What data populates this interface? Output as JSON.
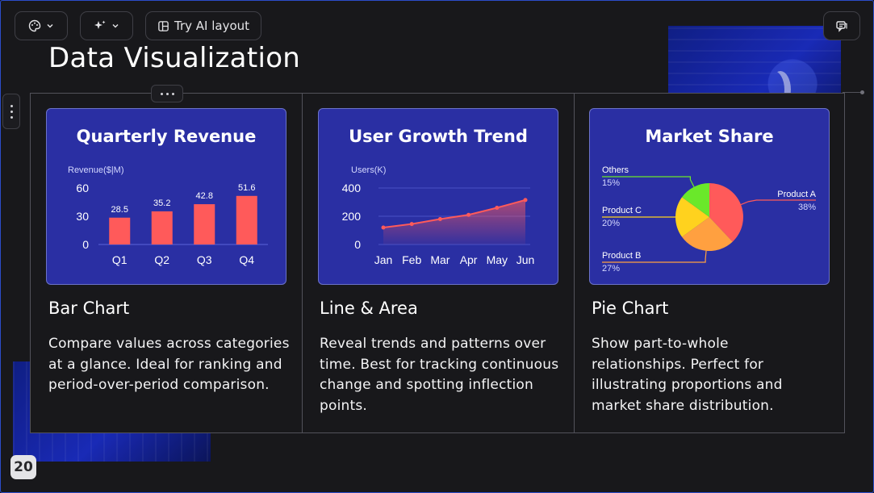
{
  "toolbar": {
    "theme_icon": "palette-icon",
    "ai_icon": "sparkles-icon",
    "ai_layout_label": "Try AI layout",
    "comment_icon": "comment-icon"
  },
  "slide": {
    "title": "Data Visualization",
    "page_number": "20"
  },
  "columns": [
    {
      "heading": "Bar Chart",
      "description": "Compare values across categories at a glance. Ideal for ranking and period-over-period comparison."
    },
    {
      "heading": "Line & Area",
      "description": "Reveal trends and patterns over time. Best for tracking continuous change and spotting inflection points."
    },
    {
      "heading": "Pie Chart",
      "description": "Show part-to-whole relationships. Perfect for illustrating proportions and market share distribution."
    }
  ],
  "chart_data": [
    {
      "type": "bar",
      "title": "Quarterly Revenue",
      "ylabel": "Revenue($|M)",
      "categories": [
        "Q1",
        "Q2",
        "Q3",
        "Q4"
      ],
      "values": [
        28.5,
        35.2,
        42.8,
        51.6
      ],
      "value_labels": [
        "28.5",
        "35.2",
        "42.8",
        "51.6"
      ],
      "yticks": [
        "0",
        "30",
        "60"
      ],
      "ylim": [
        0,
        60
      ],
      "color": "#ff5a5a"
    },
    {
      "type": "area",
      "title": "User Growth Trend",
      "ylabel": "Users(K)",
      "categories": [
        "Jan",
        "Feb",
        "Mar",
        "Apr",
        "May",
        "Jun"
      ],
      "values": [
        120,
        145,
        180,
        210,
        260,
        315
      ],
      "yticks": [
        "0",
        "200",
        "400"
      ],
      "ylim": [
        0,
        400
      ],
      "color": "#ff5a5a"
    },
    {
      "type": "pie",
      "title": "Market Share",
      "slices": [
        {
          "name": "Product A",
          "value": 38,
          "label": "38%",
          "color": "#ff5a5a"
        },
        {
          "name": "Product B",
          "value": 27,
          "label": "27%",
          "color": "#ffa040"
        },
        {
          "name": "Product C",
          "value": 20,
          "label": "20%",
          "color": "#ffd21e"
        },
        {
          "name": "Others",
          "value": 15,
          "label": "15%",
          "color": "#6ae82a"
        }
      ]
    }
  ]
}
